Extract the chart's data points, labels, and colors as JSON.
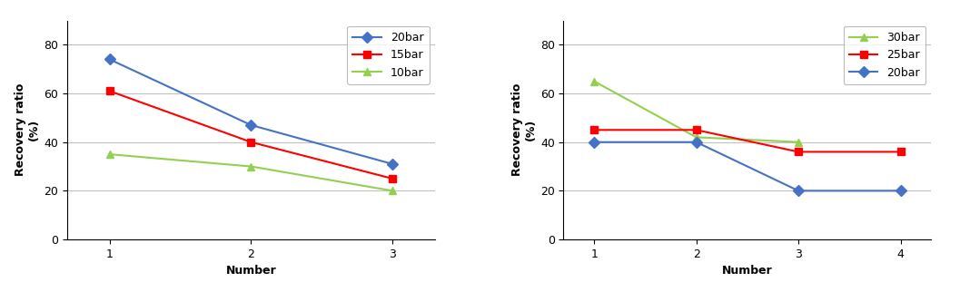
{
  "left": {
    "x": [
      1,
      2,
      3
    ],
    "series": [
      {
        "label": "20bar",
        "values": [
          74,
          47,
          31
        ],
        "color": "#4472C4",
        "marker": "D"
      },
      {
        "label": "15bar",
        "values": [
          61,
          40,
          25
        ],
        "color": "#FF0000",
        "marker": "s"
      },
      {
        "label": "10bar",
        "values": [
          35,
          30,
          20
        ],
        "color": "#92D050",
        "marker": "^"
      }
    ],
    "ylabel": "Recovery ratio\n(%)",
    "xlabel": "Number",
    "ylim": [
      0,
      90
    ],
    "yticks": [
      0,
      20,
      40,
      60,
      80
    ],
    "xticks": [
      1,
      2,
      3
    ]
  },
  "right": {
    "x": [
      1,
      2,
      3,
      4
    ],
    "series": [
      {
        "label": "30bar",
        "values": [
          65,
          42,
          40,
          null
        ],
        "color": "#92D050",
        "marker": "^"
      },
      {
        "label": "25bar",
        "values": [
          45,
          45,
          36,
          36
        ],
        "color": "#FF0000",
        "marker": "s"
      },
      {
        "label": "20bar",
        "values": [
          40,
          40,
          20,
          20
        ],
        "color": "#4472C4",
        "marker": "D"
      }
    ],
    "ylabel": "Recovery ratio\n(%)",
    "xlabel": "Number",
    "ylim": [
      0,
      90
    ],
    "yticks": [
      0,
      20,
      40,
      60,
      80
    ],
    "xticks": [
      1,
      2,
      3,
      4
    ]
  },
  "bg_color": "#FFFFFF",
  "panel_bg": "#FFFFFF",
  "grid_color": "#C0C0C0",
  "legend_fontsize": 9,
  "axis_fontsize": 9,
  "label_fontsize": 9,
  "linewidth": 1.5,
  "markersize": 6
}
